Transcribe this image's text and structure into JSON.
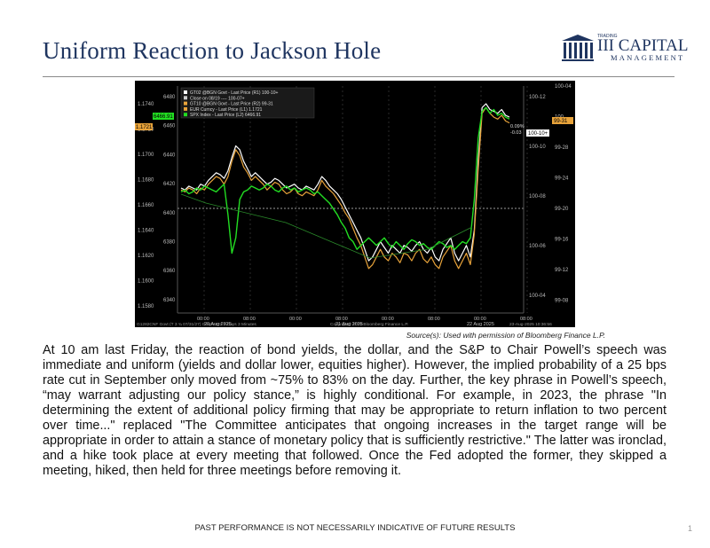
{
  "header": {
    "title": "Uniform Reaction to Jackson Hole",
    "logo": {
      "small": "TRADING",
      "name": "III CAPITAL",
      "sub": "MANAGEMENT"
    }
  },
  "chart_data": {
    "type": "line",
    "legend": [
      "GT02 @BGN Govt - Last Price (R1) 100-10+",
      "Close on 08/19 ---- 100-07+",
      "GT10 @BGN Govt - Last Price (R2) 99-31",
      "EUR Curncy - Last Price (L1) 1.1721",
      "SPX Index - Last Price (L2) 6466.91"
    ],
    "left_axis_1": [
      "1.1740",
      "1.1720",
      "1.1700",
      "1.1680",
      "1.1660",
      "1.1640",
      "1.1620",
      "1.1600",
      "1.1580"
    ],
    "left_axis_2": [
      "6480",
      "6460",
      "6440",
      "6420",
      "6400",
      "6380",
      "6360",
      "6340"
    ],
    "right_axis_1": [
      "100-12",
      "100-10",
      "100-08",
      "100-06",
      "100-04"
    ],
    "right_axis_2": [
      "100-04",
      "100",
      "99-28",
      "99-24",
      "99-20",
      "99-16",
      "99-12",
      "99-08"
    ],
    "x_ticks": [
      "00:00",
      "08:00",
      "00:00",
      "08:00",
      "00:00",
      "08:00",
      "00:00",
      "08:00"
    ],
    "date_labels": [
      "20 Aug 2025",
      "21 Aug 2025",
      "22 Aug 2025"
    ],
    "left_tags": [
      "6466.91",
      "1.1721"
    ],
    "right_tags": [
      "99-31",
      "100-10+"
    ],
    "last_values": [
      "0.09%",
      "-0.03"
    ],
    "footer_left": "G1282CNF Govt (T 3 ¾ 07/31/27) Graph 522 3 Days 3 Minutes",
    "footer_mid": "Copyright© 2025 Bloomberg Finance L.P.",
    "footer_right": "23-Aug-2025 10:36:56",
    "series": [
      {
        "name": "GT02 @BGN Govt - Last Price (R1)",
        "color": "#ffffff",
        "values": [
          0.56,
          0.55,
          0.57,
          0.56,
          0.55,
          0.58,
          0.57,
          0.6,
          0.62,
          0.64,
          0.63,
          0.61,
          0.65,
          0.72,
          0.78,
          0.76,
          0.7,
          0.66,
          0.62,
          0.64,
          0.62,
          0.6,
          0.58,
          0.59,
          0.61,
          0.6,
          0.58,
          0.56,
          0.57,
          0.58,
          0.56,
          0.55,
          0.57,
          0.56,
          0.55,
          0.58,
          0.62,
          0.6,
          0.57,
          0.55,
          0.53,
          0.5,
          0.46,
          0.42,
          0.38,
          0.34,
          0.3,
          0.24,
          0.18,
          0.2,
          0.24,
          0.28,
          0.25,
          0.22,
          0.26,
          0.24,
          0.22,
          0.26,
          0.25,
          0.23,
          0.26,
          0.28,
          0.24,
          0.22,
          0.25,
          0.2,
          0.18,
          0.24,
          0.27,
          0.3,
          0.22,
          0.18,
          0.22,
          0.26,
          0.2,
          0.34,
          0.7,
          0.98,
          1.0,
          0.97,
          0.96,
          0.95,
          0.97,
          0.94,
          0.93
        ]
      },
      {
        "name": "GT10 @BGN Govt - Last Price (R2)",
        "color": "#e8a33a",
        "values": [
          0.55,
          0.54,
          0.56,
          0.55,
          0.53,
          0.56,
          0.55,
          0.58,
          0.6,
          0.62,
          0.61,
          0.58,
          0.62,
          0.7,
          0.76,
          0.73,
          0.67,
          0.64,
          0.6,
          0.62,
          0.6,
          0.58,
          0.55,
          0.57,
          0.59,
          0.58,
          0.55,
          0.53,
          0.54,
          0.56,
          0.53,
          0.52,
          0.54,
          0.53,
          0.52,
          0.55,
          0.6,
          0.57,
          0.55,
          0.53,
          0.5,
          0.47,
          0.43,
          0.4,
          0.35,
          0.3,
          0.26,
          0.2,
          0.14,
          0.16,
          0.2,
          0.24,
          0.2,
          0.18,
          0.22,
          0.2,
          0.17,
          0.22,
          0.21,
          0.18,
          0.22,
          0.24,
          0.19,
          0.17,
          0.2,
          0.16,
          0.14,
          0.2,
          0.23,
          0.26,
          0.18,
          0.14,
          0.18,
          0.22,
          0.16,
          0.32,
          0.66,
          0.95,
          0.98,
          0.95,
          0.93,
          0.92,
          0.94,
          0.91,
          0.9
        ]
      },
      {
        "name": "SPX Index - Last Price (L2)",
        "color": "#22dd22",
        "values": [
          0.54,
          0.55,
          0.53,
          0.54,
          0.56,
          0.55,
          0.57,
          0.56,
          0.55,
          0.54,
          0.56,
          0.58,
          0.42,
          0.22,
          0.3,
          0.5,
          0.54,
          0.55,
          0.57,
          0.56,
          0.55,
          0.56,
          0.58,
          0.57,
          0.55,
          0.54,
          0.56,
          0.57,
          0.55,
          0.56,
          0.54,
          0.55,
          0.56,
          0.55,
          0.53,
          0.54,
          0.52,
          0.5,
          0.48,
          0.45,
          0.42,
          0.38,
          0.35,
          0.3,
          0.28,
          0.24,
          0.26,
          0.28,
          0.3,
          0.28,
          0.26,
          0.28,
          0.3,
          0.27,
          0.25,
          0.28,
          0.26,
          0.24,
          0.27,
          0.29,
          0.28,
          0.26,
          0.27,
          0.25,
          0.24,
          0.26,
          0.28,
          0.27,
          0.25,
          0.26,
          0.24,
          0.26,
          0.28,
          0.27,
          0.3,
          0.5,
          0.82,
          0.96,
          0.98,
          0.95,
          0.97,
          0.94,
          0.95,
          0.93,
          0.92
        ]
      }
    ]
  },
  "source": "Source(s): Used with permission of Bloomberg Finance L.P.",
  "body_text": "At 10 am last Friday, the reaction of bond yields, the dollar, and the S&P to Chair Powell’s speech was immediate and uniform (yields and dollar lower, equities higher). However, the implied probability of a 25 bps rate cut in September only moved from ~75% to 83% on the day. Further, the key phrase in Powell’s speech, “may warrant adjusting our policy stance,” is highly conditional. For example, in 2023, the phrase \"In determining the extent of additional policy firming that may be appropriate to return inflation to two percent over time...\" replaced  \"The Committee anticipates that ongoing increases in the target range will be appropriate in order to attain a stance of monetary policy that is sufficiently restrictive.\" The latter was ironclad, and a hike took place at every meeting that followed. Once the Fed adopted the former, they skipped a meeting, hiked, then held for three meetings before removing it.",
  "footer": "PAST PERFORMANCE IS NOT NECESSARILY INDICATIVE OF FUTURE RESULTS",
  "page_number": "1"
}
